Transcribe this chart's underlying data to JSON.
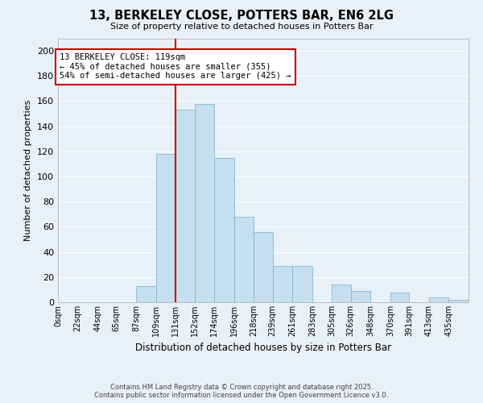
{
  "title": "13, BERKELEY CLOSE, POTTERS BAR, EN6 2LG",
  "subtitle": "Size of property relative to detached houses in Potters Bar",
  "xlabel": "Distribution of detached houses by size in Potters Bar",
  "ylabel": "Number of detached properties",
  "bin_edges": [
    0,
    22,
    44,
    65,
    87,
    109,
    131,
    152,
    174,
    196,
    218,
    239,
    261,
    283,
    305,
    326,
    348,
    370,
    391,
    413,
    435,
    457
  ],
  "bar_labels": [
    "0sqm",
    "22sqm",
    "44sqm",
    "65sqm",
    "87sqm",
    "109sqm",
    "131sqm",
    "152sqm",
    "174sqm",
    "196sqm",
    "218sqm",
    "239sqm",
    "261sqm",
    "283sqm",
    "305sqm",
    "326sqm",
    "348sqm",
    "370sqm",
    "391sqm",
    "413sqm",
    "435sqm"
  ],
  "bar_heights": [
    0,
    0,
    0,
    0,
    13,
    118,
    153,
    158,
    115,
    68,
    56,
    29,
    29,
    0,
    14,
    9,
    0,
    8,
    0,
    4,
    2
  ],
  "bar_color": "#c5dff0",
  "bar_edge_color": "#7aaec8",
  "vline_x": 131,
  "vline_color": "#cc0000",
  "annotation_text": "13 BERKELEY CLOSE: 119sqm\n← 45% of detached houses are smaller (355)\n54% of semi-detached houses are larger (425) →",
  "annotation_box_color": "white",
  "annotation_box_edge_color": "#cc0000",
  "ylim": [
    0,
    210
  ],
  "yticks": [
    0,
    20,
    40,
    60,
    80,
    100,
    120,
    140,
    160,
    180,
    200
  ],
  "background_color": "#e8f0f8",
  "grid_color": "white",
  "footer_line1": "Contains HM Land Registry data © Crown copyright and database right 2025.",
  "footer_line2": "Contains public sector information licensed under the Open Government Licence v3.0."
}
